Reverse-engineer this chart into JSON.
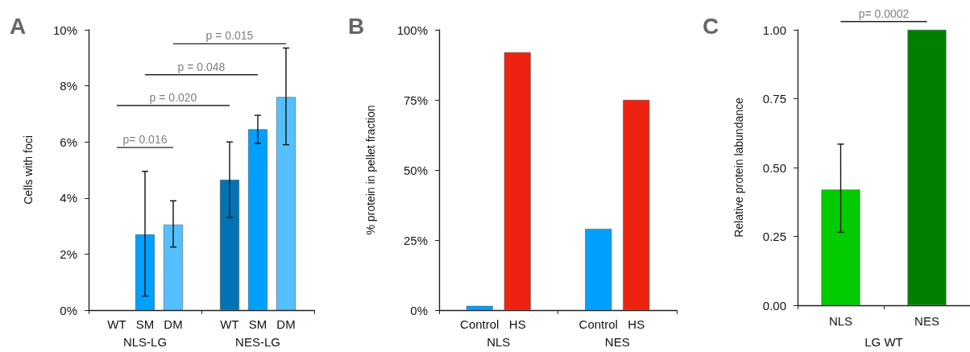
{
  "chart_data": [
    {
      "type": "bar",
      "title": "A",
      "ylabel": "Cells with foci",
      "categories": [
        "NLS-LG",
        "NES-LG"
      ],
      "series": [
        {
          "name": "WT",
          "color": "#0073b5",
          "values": [
            null,
            4.65
          ],
          "errors": [
            null,
            [
              3.3,
              6.0
            ]
          ]
        },
        {
          "name": "SM",
          "color": "#00a0ff",
          "values": [
            2.7,
            6.45
          ],
          "errors": [
            [
              0.5,
              4.95
            ],
            [
              5.95,
              6.95
            ]
          ]
        },
        {
          "name": "DM",
          "color": "#55c0ff",
          "values": [
            3.05,
            7.6
          ],
          "errors": [
            [
              2.25,
              3.9
            ],
            [
              5.9,
              9.35
            ]
          ]
        }
      ],
      "ylim": [
        0,
        10
      ],
      "yticks": [
        {
          "value": 0,
          "label": "0%"
        },
        {
          "value": 2,
          "label": "2%"
        },
        {
          "value": 4,
          "label": "4%"
        },
        {
          "value": 6,
          "label": "6%"
        },
        {
          "value": 8,
          "label": "8%"
        },
        {
          "value": 10,
          "label": "10%"
        }
      ],
      "annotations": [
        "p= 0.016",
        "p = 0.020",
        "p = 0.048",
        "p = 0.015"
      ]
    },
    {
      "type": "bar",
      "title": "B",
      "ylabel": "% protein in pellet fraction",
      "categories": [
        "NLS",
        "NES"
      ],
      "series": [
        {
          "name": "Control",
          "color": "#00a0ff",
          "values": [
            1.5,
            29
          ]
        },
        {
          "name": "HS",
          "color": "#ee2211",
          "values": [
            92,
            75
          ]
        }
      ],
      "ylim": [
        0,
        100
      ],
      "yticks": [
        {
          "value": 0,
          "label": "0%"
        },
        {
          "value": 25,
          "label": "25%"
        },
        {
          "value": 50,
          "label": "50%"
        },
        {
          "value": 75,
          "label": "75%"
        },
        {
          "value": 100,
          "label": "100%"
        }
      ]
    },
    {
      "type": "bar",
      "title": "C",
      "ylabel": "Relative protein labundance",
      "xlabel": "LG WT",
      "categories": [
        "NLS",
        "NES"
      ],
      "values": [
        0.42,
        1.0
      ],
      "colors": [
        "#00cc00",
        "#008000"
      ],
      "errors": [
        [
          0.265,
          0.585
        ],
        null
      ],
      "ylim": [
        0,
        1
      ],
      "yticks": [
        {
          "value": 0,
          "label": "0.00"
        },
        {
          "value": 0.25,
          "label": "0.25"
        },
        {
          "value": 0.5,
          "label": "0.50"
        },
        {
          "value": 0.75,
          "label": "0.75"
        },
        {
          "value": 1,
          "label": "1.00"
        }
      ],
      "annotations": [
        "p= 0.0002"
      ]
    }
  ]
}
